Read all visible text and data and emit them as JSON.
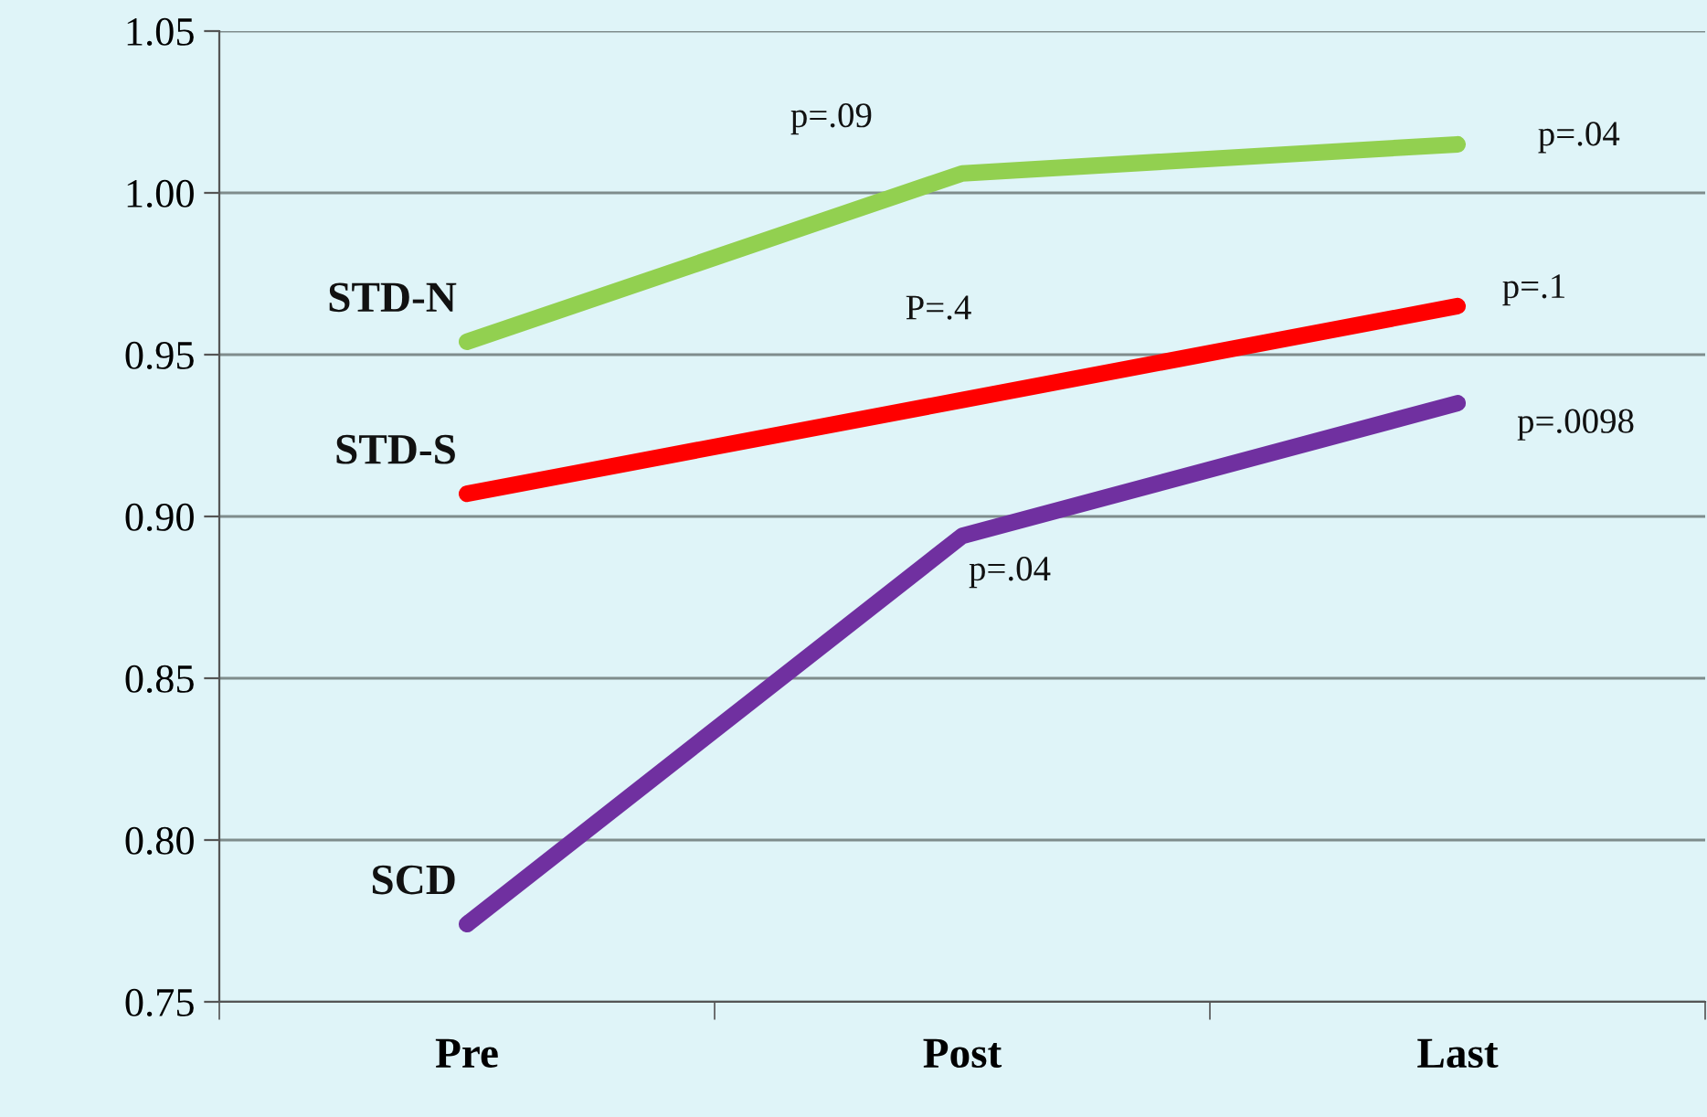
{
  "chart_data": {
    "type": "line",
    "categories": [
      "Pre",
      "Post",
      "Last"
    ],
    "series": [
      {
        "name": "STD-N",
        "color": "#92d050",
        "values": [
          0.954,
          1.006,
          1.015
        ]
      },
      {
        "name": "STD-S",
        "color": "#ff0000",
        "values": [
          0.907,
          0.936,
          0.965
        ]
      },
      {
        "name": "SCD",
        "color": "#7030a0",
        "values": [
          0.774,
          0.894,
          0.935
        ]
      }
    ],
    "annotations": [
      "p=.09",
      "p=.04",
      "P=.4",
      "p=.1",
      "p=.0098",
      "p=.04"
    ],
    "ylim": [
      0.75,
      1.05
    ],
    "yticks": [
      0.75,
      {
        "value": 0.8,
        "label": "0.80"
      },
      0.85,
      {
        "value": 0.9,
        "label": "0.90"
      },
      0.95,
      {
        "value": 1.0,
        "label": "1.00"
      },
      1.05
    ],
    "grid": "y",
    "legend": false,
    "marker": "none",
    "line_style": "solid"
  }
}
